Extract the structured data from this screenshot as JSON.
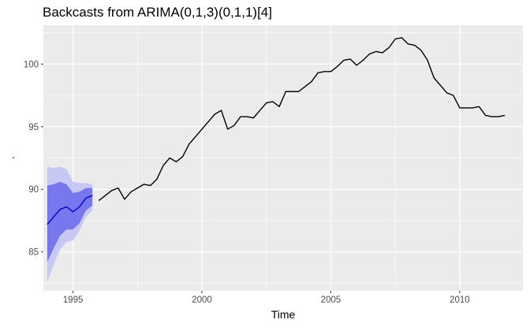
{
  "chart_data": {
    "type": "line",
    "title": "Backcasts from ARIMA(0,1,3)(0,1,1)[4]",
    "xlabel": "Time",
    "ylabel": ".",
    "xlim": [
      1993.85,
      2012.45
    ],
    "ylim": [
      81.9,
      103.1
    ],
    "x_ticks": [
      1995,
      2000,
      2005,
      2010
    ],
    "x_tick_labels": [
      "1995",
      "2000",
      "2005",
      "2010"
    ],
    "y_ticks": [
      85,
      90,
      95,
      100
    ],
    "y_tick_labels": [
      "85",
      "90",
      "95",
      "100"
    ],
    "grid": true,
    "legend": "none",
    "colors": {
      "panel_background": "#ebebeb",
      "grid_major": "#ffffff",
      "observed_line": "#000000",
      "backcast_line": "#0000cc",
      "band_80": "#7777ee",
      "band_95": "#c8c8f4"
    },
    "series": [
      {
        "role": "observed",
        "x": [
          1996.0,
          1996.25,
          1996.5,
          1996.75,
          1997.0,
          1997.25,
          1997.5,
          1997.75,
          1998.0,
          1998.25,
          1998.5,
          1998.75,
          1999.0,
          1999.25,
          1999.5,
          1999.75,
          2000.0,
          2000.25,
          2000.5,
          2000.75,
          2001.0,
          2001.25,
          2001.5,
          2001.75,
          2002.0,
          2002.25,
          2002.5,
          2002.75,
          2003.0,
          2003.25,
          2003.5,
          2003.75,
          2004.0,
          2004.25,
          2004.5,
          2004.75,
          2005.0,
          2005.25,
          2005.5,
          2005.75,
          2006.0,
          2006.25,
          2006.5,
          2006.75,
          2007.0,
          2007.25,
          2007.5,
          2007.75,
          2008.0,
          2008.25,
          2008.5,
          2008.75,
          2009.0,
          2009.25,
          2009.5,
          2009.75,
          2010.0,
          2010.25,
          2010.5,
          2010.75,
          2011.0,
          2011.25,
          2011.5,
          2011.75
        ],
        "values": [
          89.1,
          89.5,
          89.9,
          90.1,
          89.2,
          89.8,
          90.1,
          90.4,
          90.3,
          90.8,
          91.9,
          92.5,
          92.2,
          92.6,
          93.6,
          94.2,
          94.8,
          95.4,
          96.0,
          96.3,
          94.8,
          95.1,
          95.8,
          95.8,
          95.7,
          96.3,
          96.9,
          97.0,
          96.6,
          97.8,
          97.8,
          97.8,
          98.2,
          98.6,
          99.3,
          99.4,
          99.4,
          99.8,
          100.3,
          100.4,
          99.9,
          100.3,
          100.8,
          101.0,
          100.9,
          101.3,
          102.0,
          102.1,
          101.6,
          101.5,
          101.1,
          100.3,
          98.9,
          98.3,
          97.7,
          97.5,
          96.5,
          96.5,
          96.5,
          96.6,
          95.9,
          95.8,
          95.8,
          95.9
        ]
      },
      {
        "role": "backcast",
        "x": [
          1994.0,
          1994.25,
          1994.5,
          1994.75,
          1995.0,
          1995.25,
          1995.5,
          1995.75
        ],
        "values": [
          87.2,
          87.8,
          88.4,
          88.6,
          88.2,
          88.6,
          89.3,
          89.5
        ],
        "lower_80": [
          84.2,
          85.3,
          86.3,
          86.8,
          86.8,
          87.3,
          88.3,
          88.7
        ],
        "upper_80": [
          90.3,
          90.4,
          90.6,
          90.4,
          89.7,
          89.8,
          90.1,
          90.1
        ],
        "lower_95": [
          82.6,
          84.0,
          85.2,
          85.8,
          85.9,
          86.7,
          87.8,
          88.3
        ],
        "upper_95": [
          91.8,
          91.7,
          91.8,
          91.6,
          90.6,
          90.5,
          90.5,
          90.4
        ]
      }
    ]
  }
}
